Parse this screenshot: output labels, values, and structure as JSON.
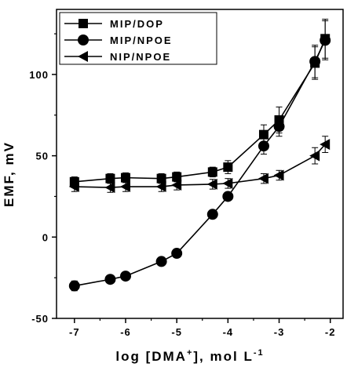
{
  "chart_data": {
    "type": "line",
    "title": "",
    "xlabel_parts": [
      "log [DMA",
      "+",
      "], mol L",
      "-1"
    ],
    "ylabel": "EMF, mV",
    "xlim": [
      -7.35,
      -1.75
    ],
    "ylim": [
      -50,
      140
    ],
    "x_ticks": [
      -7,
      -6,
      -5,
      -4,
      -3,
      -2
    ],
    "y_ticks": [
      -50,
      0,
      50,
      100
    ],
    "legend_position": "top-left",
    "grid": false,
    "series": [
      {
        "name": "MIP/DOP",
        "marker": "square",
        "x": [
          -7,
          -6.3,
          -6,
          -5.3,
          -5,
          -4.3,
          -4,
          -3.3,
          -3,
          -2.3,
          -2.1
        ],
        "y": [
          34,
          36,
          36.5,
          36,
          37,
          40,
          43,
          63,
          72,
          107,
          122
        ],
        "err": [
          3,
          3,
          3,
          3,
          3,
          3,
          4,
          6,
          8,
          10,
          12
        ]
      },
      {
        "name": "MIP/NPOE",
        "marker": "circle",
        "x": [
          -7,
          -6.3,
          -6,
          -5.3,
          -5,
          -4.3,
          -4,
          -3.3,
          -3,
          -2.3,
          -2.1
        ],
        "y": [
          -30,
          -26,
          -24,
          -15,
          -10,
          14,
          25,
          56,
          68,
          108,
          121
        ],
        "err": [
          3,
          0,
          0,
          0,
          0,
          0,
          0,
          5,
          6,
          10,
          12
        ]
      },
      {
        "name": "NIP/NPOE",
        "marker": "triangle-left",
        "x": [
          -7,
          -6.3,
          -6,
          -5.3,
          -5,
          -4.3,
          -4,
          -3.3,
          -3,
          -2.3,
          -2.1
        ],
        "y": [
          31,
          30.5,
          31,
          31,
          32,
          32.5,
          33,
          36,
          38,
          50,
          57
        ],
        "err": [
          3,
          3,
          3,
          3,
          3,
          3,
          3,
          3,
          3,
          5,
          5
        ]
      }
    ]
  }
}
